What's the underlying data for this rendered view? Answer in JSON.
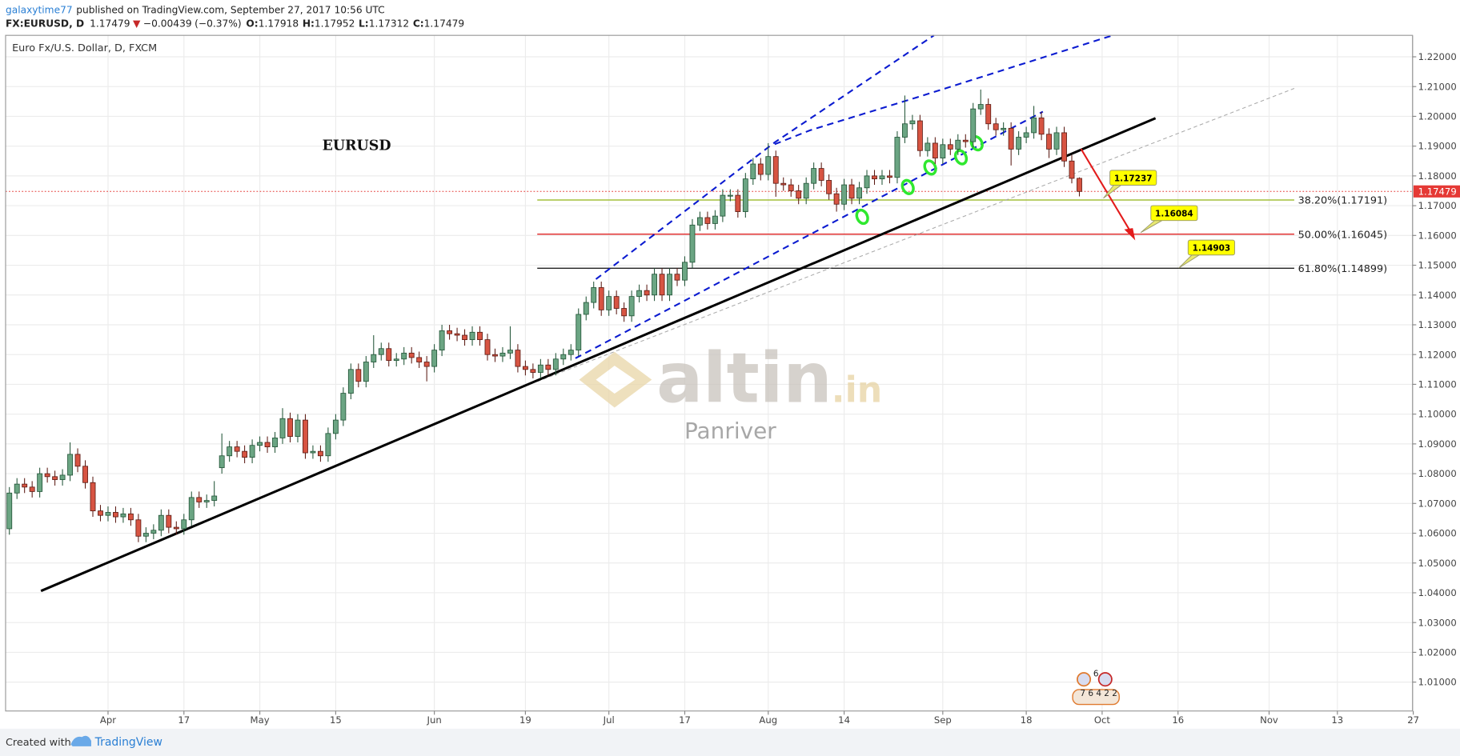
{
  "header": {
    "author": "galaxytime77",
    "published": "published on TradingView.com, September 27, 2017 10:56 UTC",
    "change": "−0.00439",
    "change_pct": "(−0.37%)",
    "ohlc_labels": [
      "O:",
      "H:",
      "L:",
      "C:"
    ]
  },
  "watermark": {
    "brand": "altin",
    "tld": ".in",
    "sub": "Panriver"
  },
  "event_markers": {
    "top": "6",
    "bottom": "7 6 4 2 2"
  },
  "footer": {
    "created": "Created with",
    "brand": "TradingView"
  },
  "chart_data": {
    "type": "candlestick",
    "symbol": "FX:EURUSD, D",
    "title": "Euro Fx/U.S. Dollar, D, FXCM",
    "annotation": "EURUSD",
    "up_color": "#6ba583",
    "up_border": "#225437",
    "down_color": "#d75442",
    "down_border": "#5b1a13",
    "last_price_color": "#e53935",
    "xlim": [
      -0.5,
      184.9
    ],
    "ylim": [
      1.0003,
      1.2272
    ],
    "grid": true,
    "xticks": [
      {
        "value": 13,
        "label": "Apr"
      },
      {
        "value": 23,
        "label": "17"
      },
      {
        "value": 33,
        "label": "May"
      },
      {
        "value": 43,
        "label": "15"
      },
      {
        "value": 56,
        "label": "Jun"
      },
      {
        "value": 68,
        "label": "19"
      },
      {
        "value": 79,
        "label": "Jul"
      },
      {
        "value": 89,
        "label": "17"
      },
      {
        "value": 100,
        "label": "Aug"
      },
      {
        "value": 110,
        "label": "14"
      },
      {
        "value": 123,
        "label": "Sep"
      },
      {
        "value": 134,
        "label": "18"
      },
      {
        "value": 144,
        "label": "Oct"
      },
      {
        "value": 154,
        "label": "16"
      },
      {
        "value": 166,
        "label": "Nov"
      },
      {
        "value": 175,
        "label": "13"
      },
      {
        "value": 185,
        "label": "27"
      }
    ],
    "yticks": [
      {
        "value": 1.01,
        "label": "1.01000"
      },
      {
        "value": 1.02,
        "label": "1.02000"
      },
      {
        "value": 1.03,
        "label": "1.03000"
      },
      {
        "value": 1.04,
        "label": "1.04000"
      },
      {
        "value": 1.05,
        "label": "1.05000"
      },
      {
        "value": 1.06,
        "label": "1.06000"
      },
      {
        "value": 1.07,
        "label": "1.07000"
      },
      {
        "value": 1.08,
        "label": "1.08000"
      },
      {
        "value": 1.09,
        "label": "1.09000"
      },
      {
        "value": 1.1,
        "label": "1.10000"
      },
      {
        "value": 1.11,
        "label": "1.11000"
      },
      {
        "value": 1.12,
        "label": "1.12000"
      },
      {
        "value": 1.13,
        "label": "1.13000"
      },
      {
        "value": 1.14,
        "label": "1.14000"
      },
      {
        "value": 1.15,
        "label": "1.15000"
      },
      {
        "value": 1.16,
        "label": "1.16000"
      },
      {
        "value": 1.17,
        "label": "1.17000"
      },
      {
        "value": 1.18,
        "label": "1.18000"
      },
      {
        "value": 1.19,
        "label": "1.19000"
      },
      {
        "value": 1.2,
        "label": "1.20000"
      },
      {
        "value": 1.21,
        "label": "1.21000"
      },
      {
        "value": 1.22,
        "label": "1.22000"
      }
    ],
    "fib_levels": [
      {
        "value": 1.17191,
        "label": "38.20%(1.17191)",
        "color": "#a4bf3c"
      },
      {
        "value": 1.16045,
        "label": "50.00%(1.16045)",
        "color": "#e02424"
      },
      {
        "value": 1.14899,
        "label": "61.80%(1.14899)",
        "color": "#222222"
      }
    ],
    "callouts": [
      1.17237,
      1.16084,
      1.14903
    ],
    "ohlc": [
      [
        1.0615,
        1.0755,
        1.0595,
        1.0735
      ],
      [
        1.0735,
        1.0785,
        1.0715,
        1.0765
      ],
      [
        1.0765,
        1.0785,
        1.0735,
        1.0755
      ],
      [
        1.0755,
        1.0775,
        1.072,
        1.074
      ],
      [
        1.074,
        1.082,
        1.072,
        1.08
      ],
      [
        1.08,
        1.082,
        1.077,
        1.079
      ],
      [
        1.079,
        1.081,
        1.076,
        1.078
      ],
      [
        1.078,
        1.0815,
        1.076,
        1.0795
      ],
      [
        1.0795,
        1.0905,
        1.0775,
        1.0865
      ],
      [
        1.0865,
        1.0885,
        1.0805,
        1.0825
      ],
      [
        1.0825,
        1.0845,
        1.075,
        1.077
      ],
      [
        1.077,
        1.079,
        1.0655,
        1.0675
      ],
      [
        1.0675,
        1.0695,
        1.064,
        1.066
      ],
      [
        1.066,
        1.069,
        1.064,
        1.067
      ],
      [
        1.067,
        1.069,
        1.0635,
        1.0655
      ],
      [
        1.0655,
        1.0685,
        1.0635,
        1.0665
      ],
      [
        1.0665,
        1.0685,
        1.0625,
        1.0645
      ],
      [
        1.0645,
        1.0665,
        1.057,
        1.059
      ],
      [
        1.059,
        1.062,
        1.057,
        1.06
      ],
      [
        1.06,
        1.063,
        1.058,
        1.061
      ],
      [
        1.061,
        1.068,
        1.059,
        1.066
      ],
      [
        1.066,
        1.068,
        1.06,
        1.062
      ],
      [
        1.062,
        1.064,
        1.0595,
        1.0615
      ],
      [
        1.0615,
        1.0665,
        1.0595,
        1.0645
      ],
      [
        1.0645,
        1.074,
        1.0625,
        1.072
      ],
      [
        1.072,
        1.074,
        1.0685,
        1.0705
      ],
      [
        1.0705,
        1.073,
        1.0685,
        1.071
      ],
      [
        1.071,
        1.0775,
        1.069,
        1.0725
      ],
      [
        1.082,
        1.0935,
        1.08,
        1.086
      ],
      [
        1.086,
        1.091,
        1.084,
        1.089
      ],
      [
        1.089,
        1.091,
        1.0855,
        1.0875
      ],
      [
        1.0875,
        1.0895,
        1.0835,
        1.0855
      ],
      [
        1.0855,
        1.0915,
        1.0835,
        1.0895
      ],
      [
        1.0895,
        1.0925,
        1.0875,
        1.0905
      ],
      [
        1.0905,
        1.0925,
        1.087,
        1.089
      ],
      [
        1.089,
        1.094,
        1.087,
        1.092
      ],
      [
        1.092,
        1.102,
        1.09,
        1.0985
      ],
      [
        1.0985,
        1.1005,
        1.0905,
        1.0925
      ],
      [
        1.0925,
        1.1,
        1.0905,
        1.098
      ],
      [
        1.098,
        1.1,
        1.085,
        1.087
      ],
      [
        1.087,
        1.0895,
        1.085,
        1.0875
      ],
      [
        1.0875,
        1.0895,
        1.084,
        1.086
      ],
      [
        1.086,
        1.0955,
        1.084,
        1.0935
      ],
      [
        1.0935,
        1.1,
        1.0915,
        1.098
      ],
      [
        1.098,
        1.109,
        1.096,
        1.107
      ],
      [
        1.107,
        1.117,
        1.105,
        1.115
      ],
      [
        1.115,
        1.117,
        1.109,
        1.111
      ],
      [
        1.111,
        1.1195,
        1.109,
        1.1175
      ],
      [
        1.1175,
        1.1265,
        1.1155,
        1.12
      ],
      [
        1.12,
        1.124,
        1.118,
        1.122
      ],
      [
        1.122,
        1.124,
        1.116,
        1.118
      ],
      [
        1.118,
        1.1205,
        1.116,
        1.1185
      ],
      [
        1.1185,
        1.1225,
        1.1165,
        1.1205
      ],
      [
        1.1205,
        1.1225,
        1.117,
        1.119
      ],
      [
        1.119,
        1.121,
        1.1155,
        1.1175
      ],
      [
        1.1175,
        1.1195,
        1.111,
        1.116
      ],
      [
        1.116,
        1.1235,
        1.114,
        1.1215
      ],
      [
        1.1215,
        1.13,
        1.1195,
        1.128
      ],
      [
        1.128,
        1.13,
        1.125,
        1.127
      ],
      [
        1.127,
        1.129,
        1.1245,
        1.1265
      ],
      [
        1.1265,
        1.1285,
        1.123,
        1.125
      ],
      [
        1.125,
        1.1295,
        1.123,
        1.1275
      ],
      [
        1.1275,
        1.1295,
        1.123,
        1.125
      ],
      [
        1.125,
        1.127,
        1.118,
        1.12
      ],
      [
        1.12,
        1.122,
        1.1175,
        1.1195
      ],
      [
        1.1195,
        1.1225,
        1.1175,
        1.1205
      ],
      [
        1.1205,
        1.1295,
        1.1185,
        1.1215
      ],
      [
        1.1215,
        1.1235,
        1.114,
        1.116
      ],
      [
        1.116,
        1.118,
        1.113,
        1.115
      ],
      [
        1.115,
        1.117,
        1.112,
        1.114
      ],
      [
        1.114,
        1.1185,
        1.112,
        1.1165
      ],
      [
        1.1165,
        1.1185,
        1.113,
        1.115
      ],
      [
        1.115,
        1.1205,
        1.113,
        1.1185
      ],
      [
        1.1185,
        1.122,
        1.1165,
        1.12
      ],
      [
        1.12,
        1.1235,
        1.118,
        1.1215
      ],
      [
        1.1215,
        1.1355,
        1.1195,
        1.1335
      ],
      [
        1.1335,
        1.1395,
        1.1315,
        1.1375
      ],
      [
        1.1375,
        1.1445,
        1.1355,
        1.1425
      ],
      [
        1.1425,
        1.1445,
        1.133,
        1.135
      ],
      [
        1.135,
        1.1415,
        1.133,
        1.1395
      ],
      [
        1.1395,
        1.1415,
        1.1335,
        1.1355
      ],
      [
        1.1355,
        1.1375,
        1.131,
        1.133
      ],
      [
        1.133,
        1.1415,
        1.131,
        1.1395
      ],
      [
        1.1395,
        1.1435,
        1.1375,
        1.1415
      ],
      [
        1.1415,
        1.1435,
        1.138,
        1.14
      ],
      [
        1.14,
        1.149,
        1.138,
        1.147
      ],
      [
        1.147,
        1.149,
        1.138,
        1.14
      ],
      [
        1.14,
        1.149,
        1.138,
        1.147
      ],
      [
        1.147,
        1.149,
        1.143,
        1.145
      ],
      [
        1.145,
        1.153,
        1.143,
        1.151
      ],
      [
        1.151,
        1.1655,
        1.149,
        1.1635
      ],
      [
        1.1635,
        1.168,
        1.1615,
        1.166
      ],
      [
        1.166,
        1.168,
        1.162,
        1.164
      ],
      [
        1.164,
        1.1685,
        1.162,
        1.1665
      ],
      [
        1.1665,
        1.1755,
        1.1645,
        1.1735
      ],
      [
        1.1735,
        1.1755,
        1.1715,
        1.1735
      ],
      [
        1.1735,
        1.1755,
        1.166,
        1.168
      ],
      [
        1.168,
        1.181,
        1.166,
        1.179
      ],
      [
        1.179,
        1.186,
        1.177,
        1.184
      ],
      [
        1.184,
        1.186,
        1.1785,
        1.1805
      ],
      [
        1.1805,
        1.191,
        1.1785,
        1.1865
      ],
      [
        1.1865,
        1.1885,
        1.173,
        1.1775
      ],
      [
        1.1775,
        1.1795,
        1.175,
        1.177
      ],
      [
        1.177,
        1.179,
        1.173,
        1.175
      ],
      [
        1.175,
        1.177,
        1.1705,
        1.1725
      ],
      [
        1.1725,
        1.1795,
        1.1705,
        1.1775
      ],
      [
        1.1775,
        1.1845,
        1.1755,
        1.1825
      ],
      [
        1.1825,
        1.1845,
        1.1765,
        1.1785
      ],
      [
        1.1785,
        1.1805,
        1.172,
        1.174
      ],
      [
        1.174,
        1.176,
        1.168,
        1.1705
      ],
      [
        1.1705,
        1.179,
        1.1685,
        1.177
      ],
      [
        1.177,
        1.179,
        1.1705,
        1.1725
      ],
      [
        1.1725,
        1.178,
        1.1705,
        1.176
      ],
      [
        1.176,
        1.182,
        1.174,
        1.18
      ],
      [
        1.18,
        1.182,
        1.177,
        1.179
      ],
      [
        1.179,
        1.182,
        1.177,
        1.18
      ],
      [
        1.18,
        1.182,
        1.1775,
        1.1795
      ],
      [
        1.1795,
        1.195,
        1.1775,
        1.193
      ],
      [
        1.193,
        1.207,
        1.191,
        1.1975
      ],
      [
        1.1975,
        1.2005,
        1.1955,
        1.1985
      ],
      [
        1.1985,
        1.2005,
        1.1865,
        1.1885
      ],
      [
        1.1885,
        1.193,
        1.1865,
        1.191
      ],
      [
        1.191,
        1.193,
        1.184,
        1.186
      ],
      [
        1.186,
        1.1925,
        1.184,
        1.1905
      ],
      [
        1.1905,
        1.1925,
        1.187,
        1.189
      ],
      [
        1.189,
        1.194,
        1.187,
        1.192
      ],
      [
        1.192,
        1.194,
        1.1895,
        1.1915
      ],
      [
        1.1915,
        1.2045,
        1.1895,
        1.2025
      ],
      [
        1.2025,
        1.209,
        1.2005,
        1.204
      ],
      [
        1.204,
        1.206,
        1.1955,
        1.1975
      ],
      [
        1.1975,
        1.1995,
        1.1935,
        1.1955
      ],
      [
        1.1955,
        1.198,
        1.1935,
        1.196
      ],
      [
        1.196,
        1.198,
        1.1835,
        1.189
      ],
      [
        1.189,
        1.195,
        1.187,
        1.193
      ],
      [
        1.193,
        1.1965,
        1.191,
        1.1945
      ],
      [
        1.1945,
        1.2035,
        1.1925,
        1.1995
      ],
      [
        1.1995,
        1.2015,
        1.192,
        1.194
      ],
      [
        1.194,
        1.196,
        1.186,
        1.189
      ],
      [
        1.189,
        1.1965,
        1.187,
        1.1945
      ],
      [
        1.1945,
        1.1965,
        1.183,
        1.185
      ],
      [
        1.185,
        1.187,
        1.1775,
        1.17918
      ],
      [
        1.17918,
        1.17952,
        1.17312,
        1.17479
      ]
    ]
  }
}
